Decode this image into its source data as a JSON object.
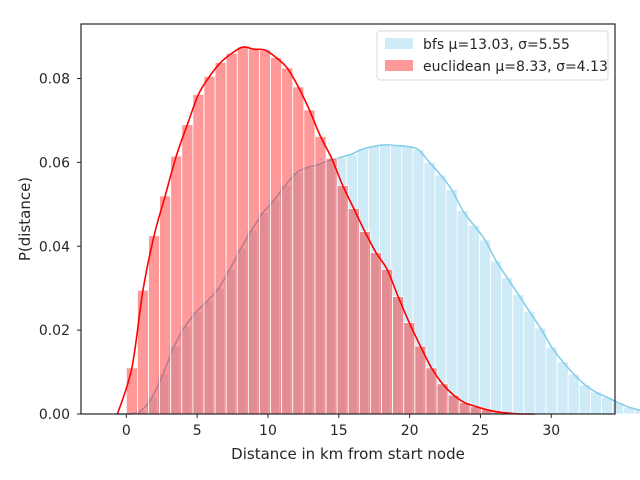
{
  "chart_data": {
    "type": "histogram",
    "xlabel": "Distance in km from start node",
    "ylabel": "P(distance)",
    "xlim": [
      -3.2,
      34.5
    ],
    "ylim": [
      0,
      0.093
    ],
    "xticks": [
      0,
      5,
      10,
      15,
      20,
      25,
      30
    ],
    "yticks": [
      0.0,
      0.02,
      0.04,
      0.06,
      0.08
    ],
    "ytick_labels": [
      "0.00",
      "0.02",
      "0.04",
      "0.06",
      "0.08"
    ],
    "grid": false,
    "legend_position": "top-right",
    "bin_width": 0.7833,
    "series": [
      {
        "name": "bfs μ=13.03, σ=5.55",
        "color": "#87ceeb",
        "bin_start": -0.137,
        "densities": [
          0.0,
          0.0008,
          0.004,
          0.0096,
          0.0162,
          0.021,
          0.0244,
          0.027,
          0.03,
          0.0345,
          0.0395,
          0.044,
          0.048,
          0.051,
          0.0545,
          0.0575,
          0.0588,
          0.0595,
          0.0605,
          0.0612,
          0.062,
          0.0632,
          0.0638,
          0.0642,
          0.064,
          0.0638,
          0.063,
          0.06,
          0.057,
          0.0535,
          0.0485,
          0.045,
          0.0415,
          0.0365,
          0.0325,
          0.0285,
          0.0245,
          0.0205,
          0.016,
          0.0125,
          0.0095,
          0.007,
          0.0052,
          0.004,
          0.0027,
          0.0016,
          0.0009,
          0.0005,
          0.0002,
          0.0001,
          0.0
        ]
      },
      {
        "name": "euclidean μ=8.33, σ=4.13",
        "color": "#ff0000",
        "bin_start": 0.0,
        "densities": [
          0.011,
          0.0295,
          0.0425,
          0.052,
          0.0615,
          0.069,
          0.0762,
          0.0805,
          0.0838,
          0.086,
          0.0875,
          0.087,
          0.0868,
          0.085,
          0.0825,
          0.078,
          0.0725,
          0.0662,
          0.061,
          0.0545,
          0.049,
          0.0435,
          0.0385,
          0.0345,
          0.028,
          0.0218,
          0.0162,
          0.011,
          0.0072,
          0.0045,
          0.0027,
          0.0018,
          0.001,
          0.0005,
          0.0002,
          0.0
        ]
      }
    ]
  }
}
